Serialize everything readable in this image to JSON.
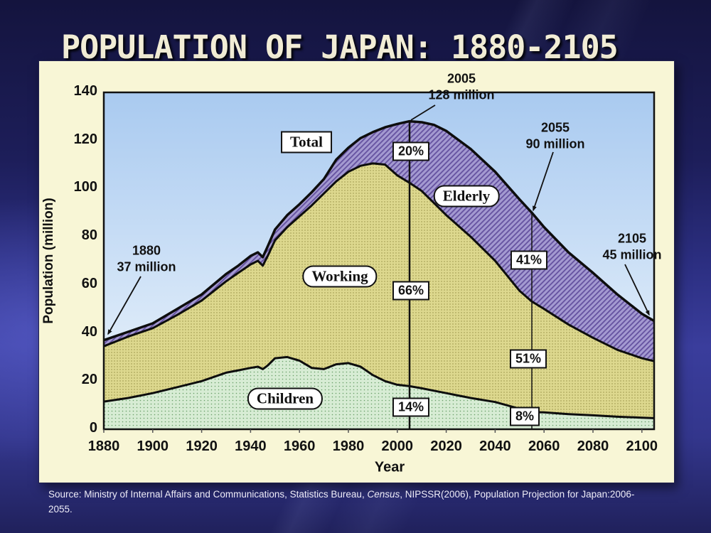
{
  "slide": {
    "title": "POPULATION OF JAPAN: 1880-2105",
    "source": {
      "prefix": "Source: Ministry of Internal Affairs and Communications, Statistics Bureau, ",
      "italic": "Census",
      "suffix": ", NIPSSR(2006), Population Projection for Japan:2006-2055."
    }
  },
  "chart_data": {
    "type": "area",
    "stacked": true,
    "title": "Population of Japan 1880-2105, stacked by age group",
    "xlabel": "Year",
    "ylabel": "Population (million)",
    "xlim": [
      1880,
      2105
    ],
    "ylim": [
      0,
      140
    ],
    "x_ticks": [
      1880,
      1900,
      1920,
      1940,
      1960,
      1980,
      2000,
      2020,
      2040,
      2060,
      2080,
      2100
    ],
    "y_ticks": [
      0,
      20,
      40,
      60,
      80,
      100,
      120,
      140
    ],
    "grid": false,
    "legend": "inline-labels",
    "years": [
      1880,
      1890,
      1900,
      1910,
      1920,
      1930,
      1935,
      1940,
      1943,
      1945,
      1947,
      1950,
      1955,
      1960,
      1965,
      1970,
      1975,
      1980,
      1985,
      1990,
      1995,
      2000,
      2005,
      2010,
      2015,
      2020,
      2030,
      2040,
      2050,
      2055,
      2060,
      2070,
      2080,
      2090,
      2100,
      2105
    ],
    "boundaries": {
      "note": "cumulative stacked tops in millions: children = 0-14 pop; children_plus_working = 0-64 pop; total = all ages",
      "children": [
        11.5,
        13,
        15,
        17.5,
        20,
        23.5,
        24.5,
        25.5,
        26,
        25,
        26.5,
        29.5,
        30,
        28.5,
        25.5,
        25,
        27,
        27.5,
        26,
        22.5,
        20,
        18.5,
        17.9,
        17,
        16,
        15,
        13,
        11.3,
        8.5,
        7.2,
        7,
        6.3,
        5.8,
        5.2,
        4.8,
        4.6
      ],
      "children_plus_working": [
        34.5,
        38.5,
        42,
        47.5,
        53.5,
        61.5,
        65,
        68.5,
        70,
        68,
        72,
        78.5,
        84,
        88.5,
        93,
        98,
        103,
        107,
        109.5,
        110.5,
        110,
        105.5,
        102.4,
        99,
        94,
        89,
        80,
        70,
        57.5,
        53.1,
        50,
        43.5,
        38,
        33,
        29.5,
        28.3
      ],
      "total": [
        37,
        40.5,
        44,
        50,
        56,
        64.5,
        68,
        72,
        73.5,
        71.5,
        76,
        83,
        89,
        93.5,
        98.5,
        104,
        112,
        117,
        121,
        123.5,
        125.5,
        126.9,
        128,
        127.6,
        126.5,
        124,
        116.5,
        107,
        95.5,
        90,
        84,
        73.5,
        65,
        56,
        48,
        45
      ]
    },
    "area_labels": {
      "total": "Total",
      "elderly": "Elderly",
      "working": "Working",
      "children": "Children"
    },
    "vlines": [
      {
        "year": 2005,
        "style": "bold"
      },
      {
        "year": 2055,
        "style": "thin"
      }
    ],
    "percent_labels": [
      {
        "year": 2005,
        "group": "Elderly",
        "text": "20%"
      },
      {
        "year": 2005,
        "group": "Working",
        "text": "66%"
      },
      {
        "year": 2005,
        "group": "Children",
        "text": "14%"
      },
      {
        "year": 2055,
        "group": "Elderly",
        "text": "41%"
      },
      {
        "year": 2055,
        "group": "Working",
        "text": "51%"
      },
      {
        "year": 2055,
        "group": "Children",
        "text": "8%"
      }
    ],
    "annotations": [
      {
        "year": 1880,
        "value": 37,
        "year_label": "1880",
        "value_label": "37 million"
      },
      {
        "year": 2005,
        "value": 128,
        "year_label": "2005",
        "value_label": "128 million"
      },
      {
        "year": 2055,
        "value": 90,
        "year_label": "2055",
        "value_label": "90 million"
      },
      {
        "year": 2105,
        "value": 45,
        "year_label": "2105",
        "value_label": "45 million"
      }
    ],
    "colors": {
      "panel_bg": "#f8f6d6",
      "sky_top": "#a9caf0",
      "sky_bottom": "#eff6fc",
      "children_fill": "#d7ecd4",
      "children_dot": "#69a069",
      "working_fill": "#ddd88e",
      "working_dot": "#938d42",
      "elderly_fill": "#a49ad1",
      "elderly_hatch": "#64519f",
      "line": "#0d0d0d",
      "slide_bg": "#2c2f82",
      "title_text": "#f2edd6"
    }
  }
}
